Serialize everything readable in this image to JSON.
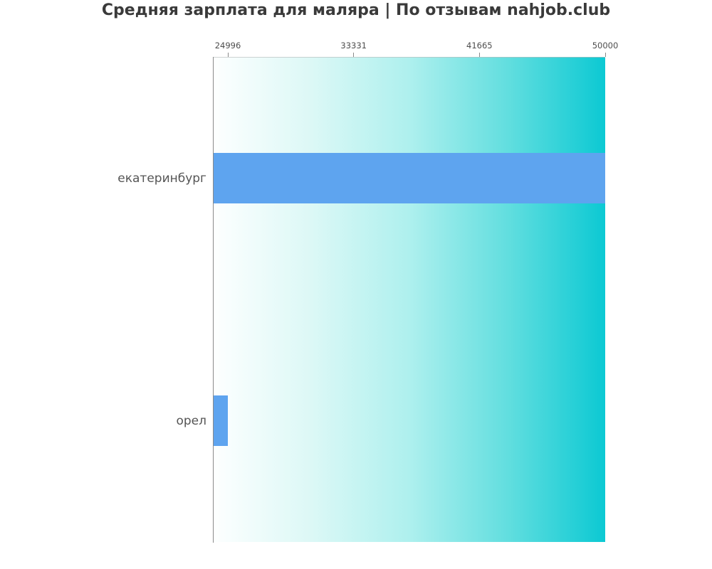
{
  "page": {
    "title": "Средняя зарплата для маляра | По отзывам nahjob.club"
  },
  "chart_data": {
    "type": "bar",
    "orientation": "horizontal",
    "title": "Средняя зарплата для маляра | По отзывам nahjob.club",
    "categories": [
      "екатеринбург",
      "орел"
    ],
    "values": [
      50000,
      24996
    ],
    "xlabel": "",
    "ylabel": "",
    "xlim": [
      24052,
      50000
    ],
    "xticks": [
      24996,
      33331,
      41665,
      50000
    ],
    "xtick_labels": [
      "24996",
      "33331",
      "41665",
      "50000"
    ],
    "x_axis_position": "top",
    "grid": false,
    "legend": "none",
    "colors": {
      "bar": "#5ea4ef",
      "background_gradient_stops": [
        "#fdffff",
        "#dcf8f6",
        "#aef0ee",
        "#62dedf",
        "#0cc9d3"
      ],
      "title_text": "#3a3a3a",
      "category_text": "#555555",
      "tick_text": "#4d4d4d",
      "spine": "#8a8a8a",
      "top_hairline": "#b7bcbc"
    }
  }
}
